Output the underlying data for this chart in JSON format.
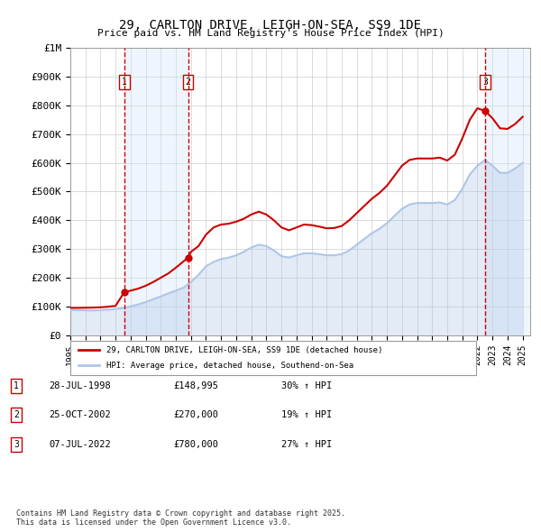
{
  "title_line1": "29, CARLTON DRIVE, LEIGH-ON-SEA, SS9 1DE",
  "title_line2": "Price paid vs. HM Land Registry's House Price Index (HPI)",
  "ylabel": "",
  "background_color": "#ffffff",
  "plot_bg_color": "#ffffff",
  "grid_color": "#cccccc",
  "hpi_color": "#aec6e8",
  "price_color": "#cc0000",
  "vline_color": "#cc0000",
  "shade_color": "#d0e4f7",
  "ytick_labels": [
    "£0",
    "£100K",
    "£200K",
    "£300K",
    "£400K",
    "£500K",
    "£600K",
    "£700K",
    "£800K",
    "£900K",
    "£1M"
  ],
  "ytick_values": [
    0,
    100000,
    200000,
    300000,
    400000,
    500000,
    600000,
    700000,
    800000,
    900000,
    1000000
  ],
  "ylim": [
    0,
    1000000
  ],
  "xlim_start": 1995.0,
  "xlim_end": 2025.5,
  "sale_dates": [
    1998.57,
    2002.81,
    2022.52
  ],
  "sale_prices": [
    148995,
    270000,
    780000
  ],
  "sale_labels": [
    "1",
    "2",
    "3"
  ],
  "shade_ranges": [
    [
      1998.57,
      2002.81
    ],
    [
      2022.52,
      2025.5
    ]
  ],
  "legend_price_label": "29, CARLTON DRIVE, LEIGH-ON-SEA, SS9 1DE (detached house)",
  "legend_hpi_label": "HPI: Average price, detached house, Southend-on-Sea",
  "table_entries": [
    {
      "num": "1",
      "date": "28-JUL-1998",
      "price": "£148,995",
      "change": "30% ↑ HPI"
    },
    {
      "num": "2",
      "date": "25-OCT-2002",
      "price": "£270,000",
      "change": "19% ↑ HPI"
    },
    {
      "num": "3",
      "date": "07-JUL-2022",
      "price": "£780,000",
      "change": "27% ↑ HPI"
    }
  ],
  "footnote": "Contains HM Land Registry data © Crown copyright and database right 2025.\nThis data is licensed under the Open Government Licence v3.0.",
  "hpi_x": [
    1995.0,
    1995.5,
    1996.0,
    1996.5,
    1997.0,
    1997.5,
    1998.0,
    1998.5,
    1999.0,
    1999.5,
    2000.0,
    2000.5,
    2001.0,
    2001.5,
    2002.0,
    2002.5,
    2003.0,
    2003.5,
    2004.0,
    2004.5,
    2005.0,
    2005.5,
    2006.0,
    2006.5,
    2007.0,
    2007.5,
    2008.0,
    2008.5,
    2009.0,
    2009.5,
    2010.0,
    2010.5,
    2011.0,
    2011.5,
    2012.0,
    2012.5,
    2013.0,
    2013.5,
    2014.0,
    2014.5,
    2015.0,
    2015.5,
    2016.0,
    2016.5,
    2017.0,
    2017.5,
    2018.0,
    2018.5,
    2019.0,
    2019.5,
    2020.0,
    2020.5,
    2021.0,
    2021.5,
    2022.0,
    2022.5,
    2023.0,
    2023.5,
    2024.0,
    2024.5,
    2025.0
  ],
  "hpi_y": [
    88000,
    87000,
    86500,
    86000,
    87000,
    89000,
    91000,
    94000,
    100000,
    107000,
    115000,
    125000,
    135000,
    145000,
    155000,
    165000,
    185000,
    210000,
    240000,
    255000,
    265000,
    270000,
    278000,
    290000,
    305000,
    315000,
    310000,
    295000,
    275000,
    270000,
    278000,
    285000,
    285000,
    282000,
    278000,
    278000,
    282000,
    295000,
    315000,
    335000,
    355000,
    370000,
    390000,
    415000,
    440000,
    455000,
    460000,
    460000,
    460000,
    462000,
    455000,
    470000,
    510000,
    560000,
    590000,
    610000,
    590000,
    565000,
    565000,
    580000,
    600000
  ],
  "price_x": [
    1995.0,
    1995.5,
    1996.0,
    1996.5,
    1997.0,
    1997.5,
    1998.0,
    1998.57,
    1999.0,
    1999.5,
    2000.0,
    2000.5,
    2001.0,
    2001.5,
    2002.0,
    2002.81,
    2003.0,
    2003.5,
    2004.0,
    2004.5,
    2005.0,
    2005.5,
    2006.0,
    2006.5,
    2007.0,
    2007.5,
    2008.0,
    2008.5,
    2009.0,
    2009.5,
    2010.0,
    2010.5,
    2011.0,
    2011.5,
    2012.0,
    2012.5,
    2013.0,
    2013.5,
    2014.0,
    2014.5,
    2015.0,
    2015.5,
    2016.0,
    2016.5,
    2017.0,
    2017.5,
    2018.0,
    2018.5,
    2019.0,
    2019.5,
    2020.0,
    2020.5,
    2021.0,
    2021.5,
    2022.0,
    2022.52,
    2023.0,
    2023.5,
    2024.0,
    2024.5,
    2025.0
  ],
  "price_y": [
    95000,
    95000,
    95500,
    96000,
    97000,
    99000,
    102000,
    148995,
    155000,
    162000,
    172000,
    185000,
    200000,
    215000,
    235000,
    270000,
    290000,
    310000,
    350000,
    375000,
    385000,
    388000,
    395000,
    405000,
    420000,
    430000,
    420000,
    400000,
    375000,
    365000,
    375000,
    385000,
    383000,
    378000,
    372000,
    373000,
    380000,
    400000,
    425000,
    450000,
    475000,
    495000,
    520000,
    555000,
    590000,
    610000,
    615000,
    615000,
    615000,
    618000,
    608000,
    628000,
    685000,
    750000,
    790000,
    780000,
    755000,
    720000,
    718000,
    735000,
    760000
  ]
}
